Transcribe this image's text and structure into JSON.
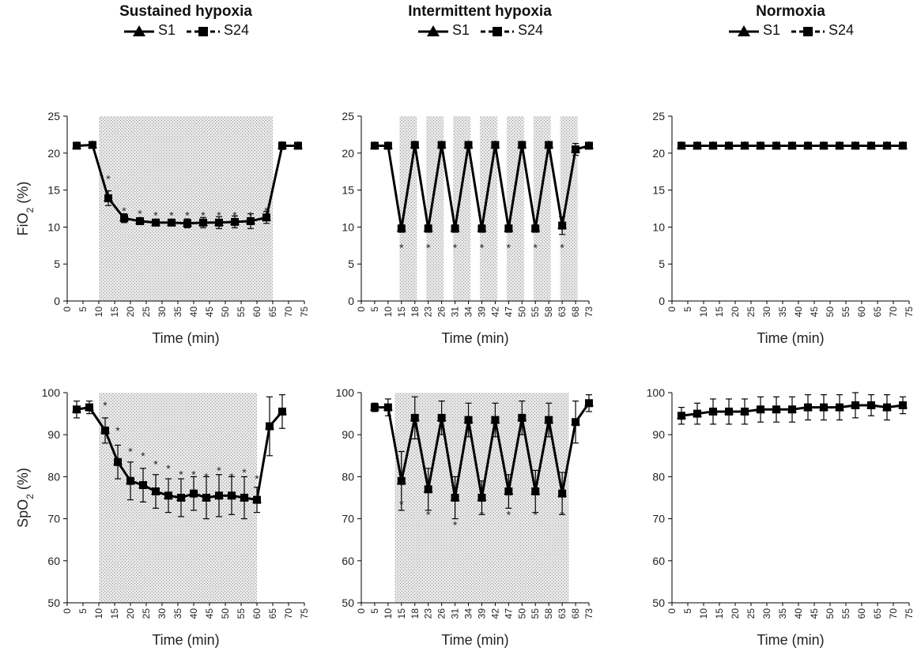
{
  "columns": [
    {
      "title": "Sustained hypoxia",
      "legend": [
        {
          "label": "S1",
          "marker": "triangle",
          "line": "solid"
        },
        {
          "label": "S24",
          "marker": "square",
          "line": "dashed"
        }
      ]
    },
    {
      "title": "Intermittent hypoxia",
      "legend": [
        {
          "label": "S1",
          "marker": "triangle",
          "line": "solid"
        },
        {
          "label": "S24",
          "marker": "square",
          "line": "dashed"
        }
      ]
    },
    {
      "title": "Normoxia",
      "legend": [
        {
          "label": "S1",
          "marker": "triangle",
          "line": "solid"
        },
        {
          "label": "S24",
          "marker": "square",
          "line": "dashed"
        }
      ]
    }
  ],
  "chart_data": [
    {
      "id": "fio2-sustained",
      "type": "line",
      "xlabel": "Time (min)",
      "ylabel": "FiO2 (%)",
      "ylim": [
        0,
        25
      ],
      "yticks": [
        "0",
        "5",
        "10",
        "15",
        "20",
        "25"
      ],
      "xticks": [
        "0",
        "5",
        "10",
        "15",
        "20",
        "25",
        "30",
        "35",
        "40",
        "45",
        "50",
        "55",
        "60",
        "65",
        "70",
        "75"
      ],
      "shaded_x": [
        [
          10,
          65
        ]
      ],
      "points": [
        [
          3,
          21,
          0.3
        ],
        [
          8,
          21.1,
          0.3
        ],
        [
          13,
          13.9,
          1
        ],
        [
          18,
          11.2,
          0.6
        ],
        [
          23,
          10.8,
          0.4
        ],
        [
          28,
          10.6,
          0.4
        ],
        [
          33,
          10.6,
          0.4
        ],
        [
          38,
          10.5,
          0.6
        ],
        [
          43,
          10.6,
          0.7
        ],
        [
          48,
          10.6,
          0.8
        ],
        [
          53,
          10.7,
          0.8
        ],
        [
          58,
          10.8,
          1
        ],
        [
          63,
          11.3,
          0.8
        ],
        [
          68,
          21,
          0.5
        ],
        [
          73,
          21,
          0.3
        ]
      ],
      "asterisks": [
        [
          13,
          16.5
        ],
        [
          18,
          12.2
        ],
        [
          23,
          11.8
        ],
        [
          28,
          11.6
        ],
        [
          33,
          11.6
        ],
        [
          38,
          11.6
        ],
        [
          43,
          11.6
        ],
        [
          48,
          11.6
        ],
        [
          53,
          11.6
        ],
        [
          58,
          11.6
        ],
        [
          63,
          12.2
        ]
      ],
      "grid": false,
      "legend_position": "above"
    },
    {
      "id": "fio2-intermittent",
      "type": "line",
      "xlabel": "Time (min)",
      "ylabel": "",
      "ylim": [
        0,
        25
      ],
      "yticks": [
        "0",
        "5",
        "10",
        "15",
        "20",
        "25"
      ],
      "xticks": [
        "0",
        "5",
        "10",
        "15",
        "18",
        "23",
        "26",
        "31",
        "34",
        "39",
        "42",
        "47",
        "50",
        "55",
        "58",
        "63",
        "68",
        "73"
      ],
      "shaded_x": [
        [
          2.85,
          4.15
        ],
        [
          4.85,
          6.15
        ],
        [
          6.85,
          8.15
        ],
        [
          8.85,
          10.15
        ],
        [
          10.85,
          12.15
        ],
        [
          12.85,
          14.15
        ],
        [
          14.85,
          16.15
        ]
      ],
      "points": [
        [
          1,
          21,
          0.3
        ],
        [
          2,
          21,
          0.3
        ],
        [
          3,
          9.8,
          0.5
        ],
        [
          4,
          21.1,
          0.3
        ],
        [
          5,
          9.8,
          0.5
        ],
        [
          6,
          21.1,
          0.3
        ],
        [
          7,
          9.8,
          0.5
        ],
        [
          8,
          21.1,
          0.3
        ],
        [
          9,
          9.8,
          0.5
        ],
        [
          10,
          21.1,
          0.3
        ],
        [
          11,
          9.8,
          0.5
        ],
        [
          12,
          21.1,
          0.3
        ],
        [
          13,
          9.8,
          0.5
        ],
        [
          14,
          21.1,
          0.3
        ],
        [
          15,
          10.2,
          1.2
        ],
        [
          16,
          20.5,
          0.8
        ],
        [
          17,
          21,
          0.3
        ]
      ],
      "asterisks": [
        [
          3,
          7.2
        ],
        [
          5,
          7.2
        ],
        [
          7,
          7.2
        ],
        [
          9,
          7.2
        ],
        [
          11,
          7.2
        ],
        [
          13,
          7.2
        ],
        [
          15,
          7.2
        ]
      ],
      "grid": false,
      "legend_position": "above"
    },
    {
      "id": "fio2-normoxia",
      "type": "line",
      "xlabel": "Time (min)",
      "ylabel": "",
      "ylim": [
        0,
        25
      ],
      "yticks": [
        "0",
        "5",
        "10",
        "15",
        "20",
        "25"
      ],
      "xticks": [
        "0",
        "5",
        "10",
        "15",
        "20",
        "25",
        "30",
        "35",
        "40",
        "45",
        "50",
        "55",
        "60",
        "65",
        "70",
        "75"
      ],
      "shaded_x": [],
      "points": [
        [
          3,
          21,
          0.2
        ],
        [
          8,
          21,
          0.2
        ],
        [
          13,
          21,
          0.2
        ],
        [
          18,
          21,
          0.2
        ],
        [
          23,
          21,
          0.2
        ],
        [
          28,
          21,
          0.2
        ],
        [
          33,
          21,
          0.2
        ],
        [
          38,
          21,
          0.2
        ],
        [
          43,
          21,
          0.2
        ],
        [
          48,
          21,
          0.2
        ],
        [
          53,
          21,
          0.2
        ],
        [
          58,
          21,
          0.2
        ],
        [
          63,
          21,
          0.2
        ],
        [
          68,
          21,
          0.2
        ],
        [
          73,
          21,
          0.2
        ]
      ],
      "asterisks": [],
      "grid": false,
      "legend_position": "above"
    },
    {
      "id": "spo2-sustained",
      "type": "line",
      "xlabel": "Time (min)",
      "ylabel": "SpO2 (%)",
      "ylim": [
        50,
        100
      ],
      "yticks": [
        "50",
        "60",
        "70",
        "80",
        "90",
        "100"
      ],
      "xticks": [
        "0",
        "5",
        "10",
        "15",
        "20",
        "25",
        "30",
        "35",
        "40",
        "45",
        "50",
        "55",
        "60",
        "65",
        "70",
        "75"
      ],
      "shaded_x": [
        [
          10,
          60
        ]
      ],
      "points": [
        [
          3,
          96,
          2
        ],
        [
          7,
          96.5,
          1.5
        ],
        [
          12,
          91,
          3
        ],
        [
          16,
          83.5,
          4
        ],
        [
          20,
          79,
          4.5
        ],
        [
          24,
          78,
          4
        ],
        [
          28,
          76.5,
          4
        ],
        [
          32,
          75.5,
          4
        ],
        [
          36,
          75,
          4.5
        ],
        [
          40,
          76,
          4
        ],
        [
          44,
          75,
          5
        ],
        [
          48,
          75.5,
          5
        ],
        [
          52,
          75.5,
          4.5
        ],
        [
          56,
          75,
          5
        ],
        [
          60,
          74.5,
          3
        ],
        [
          64,
          92,
          7
        ],
        [
          68,
          95.5,
          4
        ]
      ],
      "asterisks": [
        [
          12,
          97
        ],
        [
          16,
          91
        ],
        [
          20,
          86
        ],
        [
          24,
          85
        ],
        [
          28,
          83
        ],
        [
          32,
          82
        ],
        [
          36,
          80.5
        ],
        [
          40,
          80.5
        ],
        [
          44,
          80
        ],
        [
          48,
          81.5
        ],
        [
          52,
          80
        ],
        [
          56,
          81
        ],
        [
          60,
          79.5
        ]
      ],
      "grid": false,
      "legend_position": "above"
    },
    {
      "id": "spo2-intermittent",
      "type": "line",
      "xlabel": "Time (min)",
      "ylabel": "",
      "ylim": [
        50,
        100
      ],
      "yticks": [
        "50",
        "60",
        "70",
        "80",
        "90",
        "100"
      ],
      "xticks": [
        "0",
        "5",
        "10",
        "15",
        "18",
        "23",
        "26",
        "31",
        "34",
        "39",
        "42",
        "47",
        "50",
        "55",
        "58",
        "63",
        "68",
        "73"
      ],
      "shaded_x": [
        [
          2.5,
          15.5
        ]
      ],
      "points": [
        [
          1,
          96.5,
          1
        ],
        [
          2,
          96.5,
          2
        ],
        [
          3,
          79,
          7
        ],
        [
          4,
          94,
          5
        ],
        [
          5,
          77,
          5
        ],
        [
          6,
          94,
          4
        ],
        [
          7,
          75,
          5
        ],
        [
          8,
          93.5,
          4
        ],
        [
          9,
          75,
          4
        ],
        [
          10,
          93.5,
          4
        ],
        [
          11,
          76.5,
          4
        ],
        [
          12,
          94,
          4
        ],
        [
          13,
          76.5,
          5
        ],
        [
          14,
          93.5,
          4
        ],
        [
          15,
          76,
          5
        ],
        [
          16,
          93,
          5
        ],
        [
          17,
          97.5,
          2
        ]
      ],
      "asterisks": [
        [
          3,
          73.5
        ],
        [
          5,
          71
        ],
        [
          7,
          68.5
        ],
        [
          9,
          71
        ],
        [
          11,
          71
        ],
        [
          13,
          71
        ],
        [
          15,
          71
        ]
      ],
      "grid": false,
      "legend_position": "above"
    },
    {
      "id": "spo2-normoxia",
      "type": "line",
      "xlabel": "Time (min)",
      "ylabel": "",
      "ylim": [
        50,
        100
      ],
      "yticks": [
        "50",
        "60",
        "70",
        "80",
        "90",
        "100"
      ],
      "xticks": [
        "0",
        "5",
        "10",
        "15",
        "20",
        "25",
        "30",
        "35",
        "40",
        "45",
        "50",
        "55",
        "60",
        "65",
        "70",
        "75"
      ],
      "shaded_x": [],
      "points": [
        [
          3,
          94.5,
          2
        ],
        [
          8,
          95,
          2.5
        ],
        [
          13,
          95.5,
          3
        ],
        [
          18,
          95.5,
          3
        ],
        [
          23,
          95.5,
          3
        ],
        [
          28,
          96,
          3
        ],
        [
          33,
          96,
          3
        ],
        [
          38,
          96,
          3
        ],
        [
          43,
          96.5,
          3
        ],
        [
          48,
          96.5,
          3
        ],
        [
          53,
          96.5,
          3
        ],
        [
          58,
          97,
          3
        ],
        [
          63,
          97,
          2.5
        ],
        [
          68,
          96.5,
          3
        ],
        [
          73,
          97,
          2
        ]
      ],
      "asterisks": [],
      "grid": false,
      "legend_position": "above"
    }
  ]
}
